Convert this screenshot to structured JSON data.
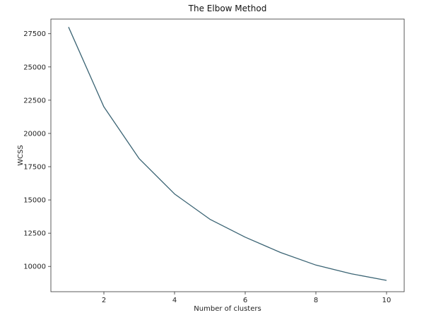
{
  "chart_data": {
    "type": "line",
    "title": "The Elbow Method",
    "xlabel": "Number of clusters",
    "ylabel": "WCSS",
    "x": [
      1,
      2,
      3,
      4,
      5,
      6,
      7,
      8,
      9,
      10
    ],
    "series": [
      {
        "values": [
          28000,
          22000,
          18100,
          15450,
          13550,
          12200,
          11050,
          10100,
          9450,
          8950
        ],
        "color": "#3b6474"
      }
    ],
    "xlim": [
      0.5,
      10.5
    ],
    "ylim": [
      8100,
      28600
    ],
    "x_ticks": [
      2,
      4,
      6,
      8,
      10
    ],
    "y_ticks": [
      10000,
      12500,
      15000,
      17500,
      20000,
      22500,
      25000,
      27500
    ],
    "grid": false,
    "legend": "none"
  }
}
